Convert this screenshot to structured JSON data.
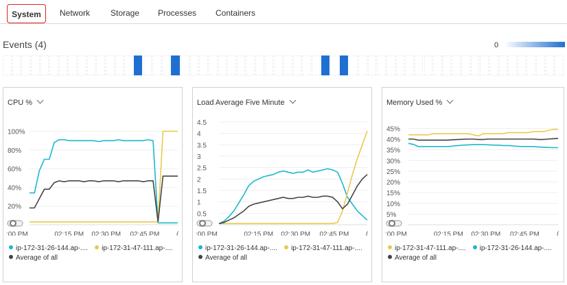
{
  "tabs": [
    {
      "label": "System",
      "active": true
    },
    {
      "label": "Network",
      "active": false
    },
    {
      "label": "Storage",
      "active": false
    },
    {
      "label": "Processes",
      "active": false
    },
    {
      "label": "Containers",
      "active": false
    }
  ],
  "events": {
    "title": "Events (4)",
    "legend_min": "0",
    "active_cells": [
      14,
      18,
      34,
      36
    ],
    "cell_count": 60,
    "accent": "#1f6fd1"
  },
  "panels": [
    {
      "title": "CPU %",
      "y_ticks": [
        "100%",
        "80%",
        "60%",
        "40%",
        "20%"
      ],
      "x_ticks": [
        ":00 PM",
        "02:15 PM",
        "02:30 PM",
        "02:45 PM",
        "("
      ],
      "legend_row1": [
        "ip-172-31-26-144.ap-....",
        "ip-172-31-47-111.ap-...."
      ],
      "legend_row2": [
        "Average of all"
      ]
    },
    {
      "title": "Load Average Five Minute",
      "y_ticks": [
        "4.5",
        "4",
        "3.5",
        "3",
        "2.5",
        "2",
        "1.5",
        "1",
        "0.5"
      ],
      "x_ticks": [
        ":00 PM",
        "02:15 PM",
        "02:30 PM",
        "02:45 PM",
        "("
      ],
      "legend_row1": [
        "ip-172-31-26-144.ap-....",
        "ip-172-31-47-111.ap-...."
      ],
      "legend_row2": [
        "Average of all"
      ]
    },
    {
      "title": "Memory Used %",
      "y_ticks": [
        "45%",
        "40%",
        "35%",
        "30%",
        "25%",
        "20%",
        "15%",
        "10%",
        "5%"
      ],
      "x_ticks": [
        ":00 PM",
        "02:15 PM",
        "02:30 PM",
        "02:45 PM",
        "("
      ],
      "legend_row1": [
        "ip-172-31-47-111.ap-....",
        "ip-172-31-26-144.ap-...."
      ],
      "legend_row2": [
        "Average of all"
      ]
    }
  ],
  "colors": {
    "teal": "#1bb8cc",
    "yellow": "#ecc94b",
    "dark": "#444444",
    "grid": "#eeeeee"
  },
  "chart_data": [
    {
      "type": "line",
      "title": "CPU %",
      "ylim": [
        0,
        110
      ],
      "x": [
        0,
        1,
        2,
        3,
        4,
        5,
        6,
        7,
        8,
        9,
        10,
        11,
        12,
        13,
        14,
        15,
        16,
        17,
        18,
        19,
        20,
        21,
        22,
        23,
        24,
        25,
        26,
        27,
        28,
        29,
        30
      ],
      "series": [
        {
          "name": "ip-172-31-26-144.ap-....",
          "color": "#1bb8cc",
          "values": [
            34,
            34,
            58,
            70,
            70,
            88,
            91,
            91,
            90,
            90,
            90,
            90,
            90,
            90,
            89,
            90,
            90,
            90,
            91,
            90,
            90,
            90,
            90,
            90,
            91,
            90,
            2,
            2,
            2,
            2,
            2
          ]
        },
        {
          "name": "ip-172-31-47-111.ap-....",
          "color": "#ecc94b",
          "values": [
            3,
            3,
            3,
            3,
            3,
            3,
            3,
            3,
            3,
            3,
            3,
            3,
            3,
            3,
            3,
            3,
            3,
            3,
            3,
            3,
            3,
            3,
            3,
            3,
            3,
            3,
            3,
            100,
            100,
            100,
            100
          ]
        },
        {
          "name": "Average of all",
          "color": "#444444",
          "values": [
            18,
            18,
            28,
            38,
            38,
            45,
            47,
            46,
            47,
            47,
            47,
            46,
            47,
            47,
            46,
            47,
            47,
            47,
            46,
            47,
            47,
            47,
            47,
            46,
            47,
            47,
            3,
            52,
            52,
            52,
            52
          ]
        }
      ]
    },
    {
      "type": "line",
      "title": "Load Average Five Minute",
      "ylim": [
        0,
        4.5
      ],
      "x": [
        0,
        1,
        2,
        3,
        4,
        5,
        6,
        7,
        8,
        9,
        10,
        11,
        12,
        13,
        14,
        15,
        16,
        17,
        18,
        19,
        20,
        21,
        22,
        23,
        24,
        25,
        26,
        27,
        28,
        29,
        30
      ],
      "series": [
        {
          "name": "ip-172-31-26-144.ap-....",
          "color": "#1bb8cc",
          "values": [
            0.05,
            0.15,
            0.35,
            0.6,
            0.95,
            1.3,
            1.7,
            1.9,
            2.0,
            2.1,
            2.15,
            2.2,
            2.3,
            2.35,
            2.3,
            2.25,
            2.3,
            2.3,
            2.4,
            2.3,
            2.35,
            2.4,
            2.45,
            2.4,
            2.3,
            1.8,
            1.2,
            0.9,
            0.6,
            0.4,
            0.2
          ]
        },
        {
          "name": "ip-172-31-47-111.ap-....",
          "color": "#ecc94b",
          "values": [
            0.05,
            0.05,
            0.05,
            0.05,
            0.05,
            0.05,
            0.05,
            0.05,
            0.05,
            0.05,
            0.05,
            0.05,
            0.05,
            0.05,
            0.05,
            0.05,
            0.05,
            0.05,
            0.05,
            0.05,
            0.05,
            0.05,
            0.05,
            0.05,
            0.1,
            0.6,
            1.4,
            2.2,
            2.9,
            3.5,
            4.1
          ]
        },
        {
          "name": "Average of all",
          "color": "#444444",
          "values": [
            0.05,
            0.1,
            0.2,
            0.3,
            0.45,
            0.6,
            0.8,
            0.9,
            0.95,
            1.0,
            1.05,
            1.1,
            1.15,
            1.2,
            1.15,
            1.15,
            1.2,
            1.2,
            1.25,
            1.2,
            1.2,
            1.25,
            1.25,
            1.2,
            1.0,
            0.7,
            0.9,
            1.3,
            1.7,
            2.0,
            2.2
          ]
        }
      ]
    },
    {
      "type": "line",
      "title": "Memory Used %",
      "ylim": [
        0,
        48
      ],
      "x": [
        0,
        1,
        2,
        3,
        4,
        5,
        6,
        7,
        8,
        9,
        10,
        11,
        12,
        13,
        14,
        15,
        16,
        17,
        18,
        19,
        20,
        21,
        22,
        23,
        24,
        25,
        26,
        27,
        28,
        29,
        30
      ],
      "series": [
        {
          "name": "ip-172-31-47-111.ap-....",
          "color": "#ecc94b",
          "values": [
            42,
            42,
            42,
            42,
            42,
            42.5,
            42.5,
            42.5,
            42.5,
            42.5,
            42.5,
            42.5,
            42.5,
            42,
            41.5,
            42.5,
            42.5,
            42.5,
            42.5,
            42.5,
            43,
            43,
            43,
            43,
            43,
            43.5,
            43.5,
            43.5,
            44,
            44.5,
            44.5
          ]
        },
        {
          "name": "ip-172-31-26-144.ap-....",
          "color": "#1bb8cc",
          "values": [
            38,
            37.5,
            36.5,
            36.5,
            36.5,
            36.5,
            36.5,
            36.5,
            36.5,
            36.8,
            37,
            37.2,
            37.3,
            37.4,
            37.4,
            37.4,
            37.3,
            37.2,
            37.2,
            37,
            37,
            36.8,
            36.6,
            36.5,
            36.5,
            36.5,
            36.3,
            36.2,
            36.1,
            36,
            36
          ]
        },
        {
          "name": "Average of all",
          "color": "#444444",
          "values": [
            40,
            40,
            39.5,
            39.5,
            39.5,
            39.5,
            39.5,
            39.5,
            39.5,
            39.7,
            39.8,
            39.9,
            40,
            40,
            39.8,
            39.8,
            40,
            40,
            40,
            40,
            40,
            40,
            40,
            40,
            40,
            40,
            39.8,
            39.8,
            40,
            40.2,
            40.3
          ]
        }
      ]
    }
  ]
}
